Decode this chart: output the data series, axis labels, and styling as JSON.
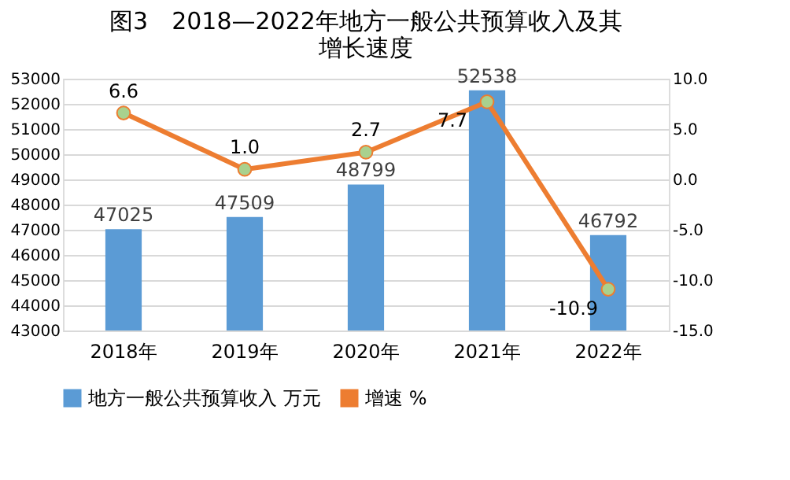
{
  "chart_data": {
    "type": "bar",
    "title": "图3　2018—2022年地方一般公共预算收入及其增长速度",
    "categories": [
      "2018年",
      "2019年",
      "2020年",
      "2021年",
      "2022年"
    ],
    "series": [
      {
        "name": "地方一般公共预算收入 万元",
        "color": "#5b9bd5",
        "values": [
          47025,
          47509,
          48799,
          52538,
          46792
        ]
      },
      {
        "name": "增速 %",
        "type": "line",
        "axis": "y2",
        "color": "#ed7d31",
        "marker": "circle",
        "values": [
          6.6,
          1.0,
          2.7,
          7.7,
          -10.9
        ],
        "value_labels": [
          "6.6",
          "1.0",
          "2.7",
          "7.7",
          "-10.9"
        ]
      }
    ],
    "ylim": [
      43000,
      53000
    ],
    "yticks": [
      43000,
      44000,
      45000,
      46000,
      47000,
      48000,
      49000,
      50000,
      51000,
      52000,
      53000
    ],
    "y2lim": [
      -15.0,
      10.0
    ],
    "y2ticks": [
      {
        "value": -15,
        "label": "-15.0"
      },
      {
        "value": -10,
        "label": "-10.0"
      },
      {
        "value": -5,
        "label": "-5.0"
      },
      {
        "value": 0,
        "label": "0.0"
      },
      {
        "value": 5,
        "label": "5.0"
      },
      {
        "value": 10,
        "label": "10.0"
      }
    ],
    "data_labels": true,
    "grid": "y",
    "legend": "bottom"
  }
}
